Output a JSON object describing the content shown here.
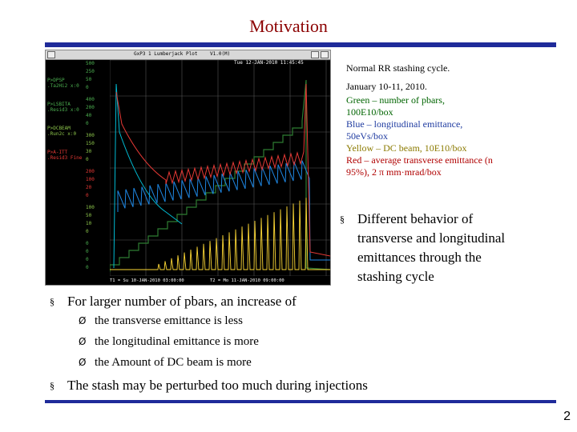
{
  "slide": {
    "title": "Motivation",
    "page_number": "2",
    "colors": {
      "title": "#8b0000",
      "rule": "#1f2b9a"
    }
  },
  "plot_window": {
    "window_title": "GxP3 1 Lumberjack Plot",
    "window_title_right": "V1.0(M)",
    "timestamp": "Tue 12-JAN-2010 11:45:45",
    "labels": [
      {
        "text": "P>DPSP\n.Ta2Hi2 x:0",
        "color": "#4caf50"
      },
      {
        "text": "P>LSBITA\n.Resid3 x:0",
        "color": "#4caf50"
      },
      {
        "text": "P>DCBEAM\n.Run2c x:0",
        "color": "#8bc34a"
      },
      {
        "text": "P>A-ITT\n.Resid3 Fine",
        "color": "#e53935"
      }
    ],
    "scales": [
      [
        "500",
        "250",
        "50",
        "0"
      ],
      [
        "400",
        "200",
        "40",
        "0"
      ],
      [
        "300",
        "150",
        "30",
        "0"
      ],
      [
        "200",
        "100",
        "20",
        "0"
      ],
      [
        "100",
        "50",
        "10",
        "0"
      ],
      [
        "0",
        "0",
        "0",
        "0"
      ]
    ],
    "footer_left": "T1 = Su 10-JAN-2010 03:00:00",
    "footer_right": "T2 = Mo 11-JAN-2010 09:00:00",
    "legend_colors": {
      "pbars": "#2e7d32",
      "long_emit": "#1e88e5",
      "dc_beam": "#fdd835",
      "trans_emit": "#e53935",
      "teal": "#00bcd4"
    }
  },
  "caption": {
    "lines": [
      {
        "text": "Normal RR stashing cycle.",
        "color": "#000000"
      },
      {
        "text": "January 10-11, 2010.",
        "color": "#000000"
      },
      {
        "text": "Green – number of pbars,",
        "color": "#006400"
      },
      {
        "text": "100E10/box",
        "color": "#006400"
      },
      {
        "text": "Blue – longitudinal emittance,",
        "color": "#1f3ba0"
      },
      {
        "text": "50eVs/box",
        "color": "#1f3ba0"
      },
      {
        "text": "Yellow – DC beam, 10E10/box",
        "color": "#8b7a00"
      },
      {
        "text": "Red – average transverse emittance (n",
        "color": "#b00000"
      },
      {
        "text": "95%), 2 π mm·mrad/box",
        "color": "#b00000"
      }
    ]
  },
  "bullets": {
    "marker": "§",
    "sub_marker": "Ø",
    "right_bullet": [
      "Different behavior of",
      "transverse and longitudinal",
      "emittances through the",
      "stashing cycle"
    ],
    "main": "For larger number of pbars, an increase of",
    "subitems": [
      "the transverse emittance is less",
      "the longitudinal emittance is more",
      "the Amount of DC beam is more"
    ],
    "last": "The stash may be perturbed too much during injections"
  }
}
